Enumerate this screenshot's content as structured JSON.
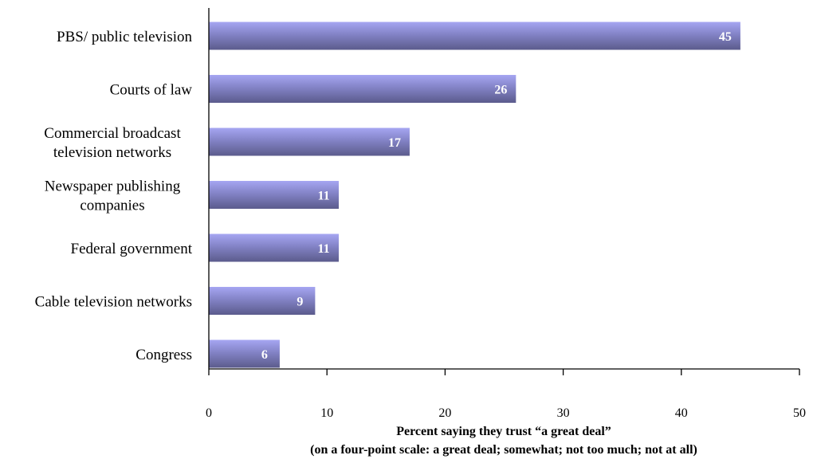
{
  "chart_data": {
    "type": "bar",
    "orientation": "horizontal",
    "categories": [
      [
        "PBS/ public television"
      ],
      [
        "Courts of law"
      ],
      [
        "Commercial broadcast",
        "television networks"
      ],
      [
        "Newspaper publishing",
        "companies"
      ],
      [
        "Federal government"
      ],
      [
        "Cable television networks"
      ],
      [
        "Congress"
      ]
    ],
    "values": [
      45,
      26,
      17,
      11,
      11,
      9,
      6
    ],
    "data_labels": [
      "45",
      "26",
      "17",
      "11",
      "11",
      "9",
      "6"
    ],
    "xlim": [
      0,
      50
    ],
    "xticks": [
      0,
      10,
      20,
      30,
      40,
      50
    ],
    "xtick_labels": [
      "0",
      "10",
      "20",
      "30",
      "40",
      "50"
    ],
    "xlabel_line1": "Percent saying they trust “a great deal”",
    "xlabel_line2": "(on a four-point scale: a great deal; somewhat; not too much; not at all)",
    "title": "",
    "grid": false,
    "legend": "none",
    "colors": {
      "bar_light": "#a6a6f2",
      "bar_mid": "#8383c6",
      "bar_dark": "#5b5b8c",
      "axis": "#000000",
      "label_text": "#ffffff"
    }
  }
}
